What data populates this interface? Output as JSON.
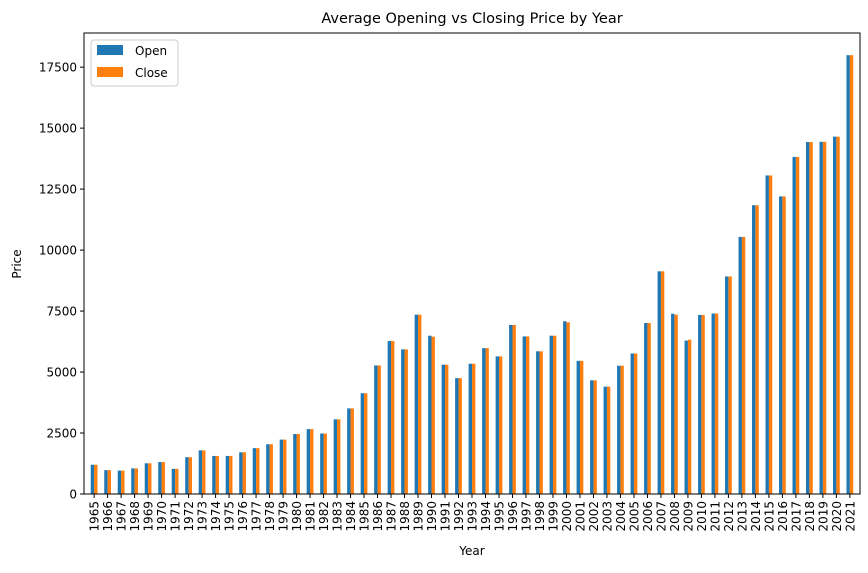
{
  "chart_data": {
    "type": "bar",
    "title": "Average Opening vs Closing Price by Year",
    "xlabel": "Year",
    "ylabel": "Price",
    "ylim": [
      0,
      18900
    ],
    "yticks": [
      0,
      2500,
      5000,
      7500,
      10000,
      12500,
      15000,
      17500
    ],
    "grid": false,
    "legend_position": "upper-left",
    "categories": [
      "1965",
      "1966",
      "1967",
      "1968",
      "1969",
      "1970",
      "1971",
      "1972",
      "1973",
      "1974",
      "1975",
      "1976",
      "1977",
      "1978",
      "1979",
      "1980",
      "1981",
      "1982",
      "1983",
      "1984",
      "1985",
      "1986",
      "1987",
      "1988",
      "1989",
      "1990",
      "1991",
      "1992",
      "1993",
      "1994",
      "1995",
      "1996",
      "1997",
      "1998",
      "1999",
      "2000",
      "2001",
      "2002",
      "2003",
      "2004",
      "2005",
      "2006",
      "2007",
      "2008",
      "2009",
      "2010",
      "2011",
      "2012",
      "2013",
      "2014",
      "2015",
      "2016",
      "2017",
      "2018",
      "2019",
      "2020",
      "2021"
    ],
    "series": [
      {
        "name": "Open",
        "color": "#1f77b4",
        "values": [
          1200,
          980,
          960,
          1050,
          1260,
          1310,
          1030,
          1510,
          1790,
          1560,
          1560,
          1710,
          1880,
          2040,
          2230,
          2460,
          2660,
          2480,
          3060,
          3510,
          4130,
          5270,
          6270,
          5930,
          7350,
          6490,
          5300,
          4750,
          5340,
          5980,
          5640,
          6930,
          6460,
          5850,
          6490,
          7080,
          5460,
          4660,
          4400,
          5260,
          5760,
          7010,
          9130,
          7390,
          6290,
          7340,
          7400,
          8920,
          10540,
          11840,
          13060,
          12200,
          13820,
          14430,
          14440,
          14650,
          17990
        ]
      },
      {
        "name": "Close",
        "color": "#ff7f0e",
        "values": [
          1200,
          980,
          960,
          1050,
          1260,
          1310,
          1030,
          1510,
          1790,
          1560,
          1560,
          1710,
          1880,
          2040,
          2230,
          2460,
          2660,
          2480,
          3060,
          3510,
          4130,
          5270,
          6270,
          5930,
          7350,
          6450,
          5300,
          4750,
          5340,
          5980,
          5640,
          6930,
          6460,
          5850,
          6490,
          7040,
          5460,
          4660,
          4400,
          5260,
          5760,
          7010,
          9130,
          7350,
          6330,
          7340,
          7400,
          8920,
          10540,
          11840,
          13060,
          12200,
          13820,
          14430,
          14440,
          14650,
          17990
        ]
      }
    ]
  }
}
